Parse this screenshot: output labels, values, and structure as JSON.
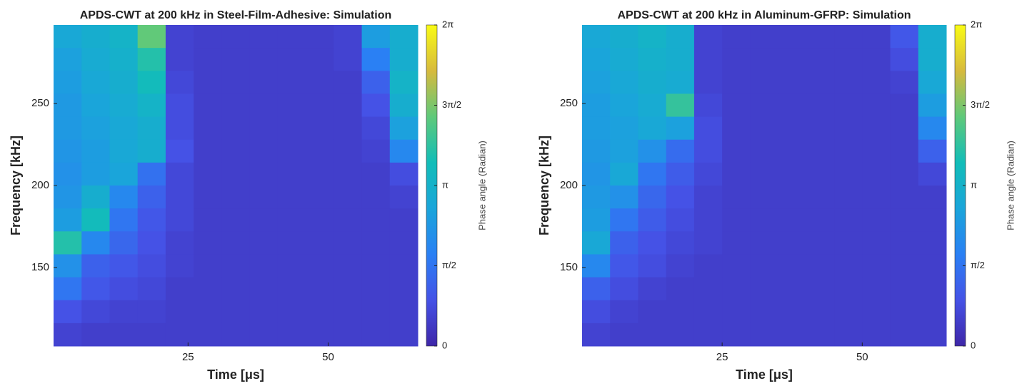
{
  "chart_data": [
    {
      "type": "heatmap",
      "title": "APDS-CWT at 200 kHz in Steel-Film-Adhesive: Simulation",
      "xlabel": "Time [μs]",
      "ylabel": "Frequency [kHz]",
      "colorbar_label": "Phase angle (Radian)",
      "xlim": [
        1,
        66
      ],
      "ylim": [
        102,
        298
      ],
      "xticks": [
        25,
        50
      ],
      "yticks": [
        150,
        200,
        250
      ],
      "clim": [
        0,
        6.283
      ],
      "cticks": [
        0,
        {
          "value": 1.571,
          "label": "π/2"
        },
        {
          "value": 3.142,
          "label": "π"
        },
        {
          "value": 4.712,
          "label": "3π/2"
        },
        {
          "value": 6.283,
          "label": "2π"
        }
      ],
      "colormap": [
        "#3e26a8",
        "#4552e6",
        "#2a80f4",
        "#1aa5da",
        "#12bdb8",
        "#5fc97a",
        "#d7ba3d",
        "#f9fb15"
      ],
      "x": [
        3.5,
        8.5,
        13.5,
        18.5,
        23.5,
        28.5,
        33.5,
        38.5,
        43.5,
        48.5,
        53.5,
        58.5,
        63.5
      ],
      "y": [
        291,
        277,
        263,
        249,
        235,
        221,
        207,
        193,
        179,
        165,
        151,
        137,
        123,
        109
      ],
      "z": [
        [
          2.8,
          3.0,
          3.2,
          4.5,
          0.6,
          0.5,
          0.5,
          0.5,
          0.5,
          0.5,
          0.6,
          2.5,
          3.0
        ],
        [
          2.6,
          2.9,
          3.1,
          3.8,
          0.6,
          0.5,
          0.5,
          0.5,
          0.5,
          0.5,
          0.6,
          1.8,
          3.0
        ],
        [
          2.5,
          2.8,
          3.0,
          3.5,
          0.7,
          0.5,
          0.5,
          0.5,
          0.5,
          0.5,
          0.5,
          1.2,
          3.2
        ],
        [
          2.4,
          2.7,
          2.9,
          3.2,
          0.8,
          0.5,
          0.5,
          0.5,
          0.5,
          0.5,
          0.5,
          0.9,
          3.0
        ],
        [
          2.4,
          2.6,
          2.8,
          3.0,
          0.8,
          0.5,
          0.5,
          0.5,
          0.5,
          0.5,
          0.5,
          0.7,
          2.6
        ],
        [
          2.3,
          2.5,
          2.8,
          3.0,
          0.9,
          0.5,
          0.5,
          0.5,
          0.5,
          0.5,
          0.5,
          0.6,
          2.0
        ],
        [
          2.2,
          2.5,
          2.7,
          1.5,
          0.7,
          0.5,
          0.5,
          0.5,
          0.5,
          0.5,
          0.5,
          0.5,
          0.8
        ],
        [
          2.3,
          3.0,
          2.0,
          1.2,
          0.7,
          0.5,
          0.5,
          0.5,
          0.5,
          0.5,
          0.5,
          0.5,
          0.6
        ],
        [
          2.5,
          3.5,
          1.6,
          1.0,
          0.7,
          0.5,
          0.5,
          0.5,
          0.5,
          0.5,
          0.5,
          0.5,
          0.5
        ],
        [
          3.8,
          2.0,
          1.3,
          0.9,
          0.6,
          0.5,
          0.5,
          0.5,
          0.5,
          0.5,
          0.5,
          0.5,
          0.5
        ],
        [
          2.2,
          1.2,
          1.0,
          0.8,
          0.6,
          0.5,
          0.5,
          0.5,
          0.5,
          0.5,
          0.5,
          0.5,
          0.5
        ],
        [
          1.6,
          1.0,
          0.8,
          0.7,
          0.5,
          0.5,
          0.5,
          0.5,
          0.5,
          0.5,
          0.5,
          0.5,
          0.5
        ],
        [
          0.9,
          0.7,
          0.6,
          0.6,
          0.5,
          0.5,
          0.5,
          0.5,
          0.5,
          0.5,
          0.5,
          0.5,
          0.5
        ],
        [
          0.6,
          0.5,
          0.5,
          0.5,
          0.5,
          0.5,
          0.5,
          0.5,
          0.5,
          0.5,
          0.5,
          0.5,
          0.5
        ]
      ]
    },
    {
      "type": "heatmap",
      "title": "APDS-CWT at 200 kHz in Aluminum-GFRP: Simulation",
      "xlabel": "Time [μs]",
      "ylabel": "Frequency [kHz]",
      "colorbar_label": "Phase angle (Radian)",
      "xlim": [
        0,
        65
      ],
      "ylim": [
        102,
        298
      ],
      "xticks": [
        25,
        50
      ],
      "yticks": [
        150,
        200,
        250
      ],
      "clim": [
        0,
        6.283
      ],
      "cticks": [
        0,
        {
          "value": 1.571,
          "label": "π/2"
        },
        {
          "value": 3.142,
          "label": "π"
        },
        {
          "value": 4.712,
          "label": "3π/2"
        },
        {
          "value": 6.283,
          "label": "2π"
        }
      ],
      "colormap": [
        "#3e26a8",
        "#4552e6",
        "#2a80f4",
        "#1aa5da",
        "#12bdb8",
        "#5fc97a",
        "#d7ba3d",
        "#f9fb15"
      ],
      "x": [
        2.5,
        7.5,
        12.5,
        17.5,
        22.5,
        27.5,
        32.5,
        37.5,
        42.5,
        47.5,
        52.5,
        57.5,
        62.5
      ],
      "y": [
        291,
        277,
        263,
        249,
        235,
        221,
        207,
        193,
        179,
        165,
        151,
        137,
        123,
        109
      ],
      "z": [
        [
          2.8,
          3.0,
          3.2,
          3.0,
          0.6,
          0.5,
          0.5,
          0.5,
          0.5,
          0.5,
          0.5,
          1.0,
          3.0
        ],
        [
          2.7,
          2.9,
          3.1,
          3.0,
          0.6,
          0.5,
          0.5,
          0.5,
          0.5,
          0.5,
          0.5,
          0.8,
          3.0
        ],
        [
          2.6,
          2.8,
          3.0,
          2.9,
          0.6,
          0.5,
          0.5,
          0.5,
          0.5,
          0.5,
          0.5,
          0.6,
          2.8
        ],
        [
          2.5,
          2.7,
          2.9,
          4.0,
          0.7,
          0.5,
          0.5,
          0.5,
          0.5,
          0.5,
          0.5,
          0.5,
          2.5
        ],
        [
          2.5,
          2.6,
          2.8,
          2.6,
          0.8,
          0.5,
          0.5,
          0.5,
          0.5,
          0.5,
          0.5,
          0.5,
          2.0
        ],
        [
          2.4,
          2.6,
          2.2,
          1.4,
          0.8,
          0.5,
          0.5,
          0.5,
          0.5,
          0.5,
          0.5,
          0.5,
          1.2
        ],
        [
          2.3,
          2.8,
          1.6,
          1.1,
          0.7,
          0.5,
          0.5,
          0.5,
          0.5,
          0.5,
          0.5,
          0.5,
          0.7
        ],
        [
          2.4,
          2.2,
          1.3,
          0.9,
          0.6,
          0.5,
          0.5,
          0.5,
          0.5,
          0.5,
          0.5,
          0.5,
          0.5
        ],
        [
          2.5,
          1.6,
          1.1,
          0.8,
          0.6,
          0.5,
          0.5,
          0.5,
          0.5,
          0.5,
          0.5,
          0.5,
          0.5
        ],
        [
          2.8,
          1.2,
          0.9,
          0.7,
          0.6,
          0.5,
          0.5,
          0.5,
          0.5,
          0.5,
          0.5,
          0.5,
          0.5
        ],
        [
          2.0,
          1.0,
          0.8,
          0.6,
          0.5,
          0.5,
          0.5,
          0.5,
          0.5,
          0.5,
          0.5,
          0.5,
          0.5
        ],
        [
          1.2,
          0.8,
          0.6,
          0.5,
          0.5,
          0.5,
          0.5,
          0.5,
          0.5,
          0.5,
          0.5,
          0.5,
          0.5
        ],
        [
          0.8,
          0.6,
          0.5,
          0.5,
          0.5,
          0.5,
          0.5,
          0.5,
          0.5,
          0.5,
          0.5,
          0.5,
          0.5
        ],
        [
          0.6,
          0.5,
          0.5,
          0.5,
          0.5,
          0.5,
          0.5,
          0.5,
          0.5,
          0.5,
          0.5,
          0.5,
          0.5
        ]
      ]
    }
  ]
}
